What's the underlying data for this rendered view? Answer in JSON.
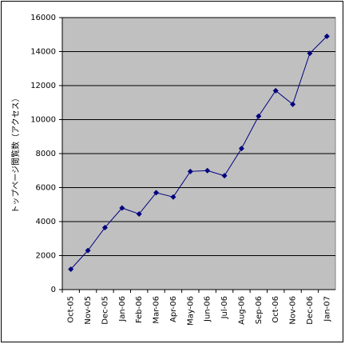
{
  "chart_data": {
    "type": "line",
    "y_axis_label": "トップページ閲覧数（アクセス）",
    "categories": [
      "Oct-05",
      "Nov-05",
      "Dec-05",
      "Jan-06",
      "Feb-06",
      "Mar-06",
      "Apr-06",
      "May-06",
      "Jun-06",
      "Jul-06",
      "Aug-06",
      "Sep-06",
      "Oct-06",
      "Nov-06",
      "Dec-06",
      "Jan-07"
    ],
    "values": [
      1200,
      2300,
      3650,
      4800,
      4450,
      5700,
      5450,
      6950,
      7000,
      6700,
      8300,
      10200,
      11700,
      10900,
      13900,
      14900
    ],
    "color": "#000080",
    "ylim": [
      0,
      16000
    ],
    "yticks": [
      0,
      2000,
      4000,
      6000,
      8000,
      10000,
      12000,
      14000,
      16000
    ],
    "grid": true
  }
}
